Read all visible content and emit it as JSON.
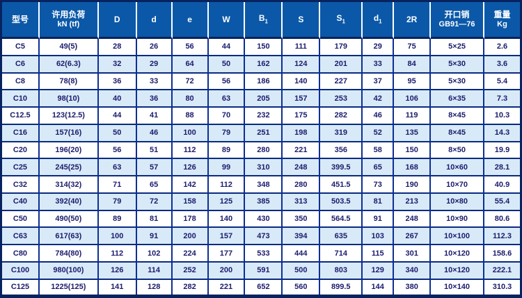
{
  "table": {
    "colors": {
      "frame": "#06235f",
      "header_bg": "#0b58a8",
      "header_text": "#ffffff",
      "grid_vertical": "#0d2f94",
      "grid_horizontal": "#0a2a80",
      "row_bg": "#ffffff",
      "row_alt_bg": "#d8eaf7",
      "cell_text": "#1b1b6e"
    },
    "columns": [
      {
        "key": "model",
        "label": "型号"
      },
      {
        "key": "load",
        "label": "许用负荷",
        "label2": "kN (tf)"
      },
      {
        "key": "D",
        "label": "D"
      },
      {
        "key": "d",
        "label": "d"
      },
      {
        "key": "e",
        "label": "e"
      },
      {
        "key": "W",
        "label": "W"
      },
      {
        "key": "B1",
        "label": "B",
        "sub": "1"
      },
      {
        "key": "S",
        "label": "S"
      },
      {
        "key": "S1",
        "label": "S",
        "sub": "1"
      },
      {
        "key": "d1",
        "label": "d",
        "sub": "1"
      },
      {
        "key": "2R",
        "label": "2R"
      },
      {
        "key": "pin",
        "label": "开口销",
        "label2": "GB91—76"
      },
      {
        "key": "weight",
        "label": "重量",
        "label2": "Kg"
      }
    ],
    "rows": [
      [
        "C5",
        "49(5)",
        "28",
        "26",
        "56",
        "44",
        "150",
        "111",
        "179",
        "29",
        "75",
        "5×25",
        "2.6"
      ],
      [
        "C6",
        "62(6.3)",
        "32",
        "29",
        "64",
        "50",
        "162",
        "124",
        "201",
        "33",
        "84",
        "5×30",
        "3.6"
      ],
      [
        "C8",
        "78(8)",
        "36",
        "33",
        "72",
        "56",
        "186",
        "140",
        "227",
        "37",
        "95",
        "5×30",
        "5.4"
      ],
      [
        "C10",
        "98(10)",
        "40",
        "36",
        "80",
        "63",
        "205",
        "157",
        "253",
        "42",
        "106",
        "6×35",
        "7.3"
      ],
      [
        "C12.5",
        "123(12.5)",
        "44",
        "41",
        "88",
        "70",
        "232",
        "175",
        "282",
        "46",
        "119",
        "8×45",
        "10.3"
      ],
      [
        "C16",
        "157(16)",
        "50",
        "46",
        "100",
        "79",
        "251",
        "198",
        "319",
        "52",
        "135",
        "8×45",
        "14.3"
      ],
      [
        "C20",
        "196(20)",
        "56",
        "51",
        "112",
        "89",
        "280",
        "221",
        "356",
        "58",
        "150",
        "8×50",
        "19.9"
      ],
      [
        "C25",
        "245(25)",
        "63",
        "57",
        "126",
        "99",
        "310",
        "248",
        "399.5",
        "65",
        "168",
        "10×60",
        "28.1"
      ],
      [
        "C32",
        "314(32)",
        "71",
        "65",
        "142",
        "112",
        "348",
        "280",
        "451.5",
        "73",
        "190",
        "10×70",
        "40.9"
      ],
      [
        "C40",
        "392(40)",
        "79",
        "72",
        "158",
        "125",
        "385",
        "313",
        "503.5",
        "81",
        "213",
        "10×80",
        "55.4"
      ],
      [
        "C50",
        "490(50)",
        "89",
        "81",
        "178",
        "140",
        "430",
        "350",
        "564.5",
        "91",
        "248",
        "10×90",
        "80.6"
      ],
      [
        "C63",
        "617(63)",
        "100",
        "91",
        "200",
        "157",
        "473",
        "394",
        "635",
        "103",
        "267",
        "10×100",
        "112.3"
      ],
      [
        "C80",
        "784(80)",
        "112",
        "102",
        "224",
        "177",
        "533",
        "444",
        "714",
        "115",
        "301",
        "10×120",
        "158.6"
      ],
      [
        "C100",
        "980(100)",
        "126",
        "114",
        "252",
        "200",
        "591",
        "500",
        "803",
        "129",
        "340",
        "10×120",
        "222.1"
      ],
      [
        "C125",
        "1225(125)",
        "141",
        "128",
        "282",
        "221",
        "652",
        "560",
        "899.5",
        "144",
        "380",
        "10×140",
        "310.3"
      ]
    ]
  }
}
